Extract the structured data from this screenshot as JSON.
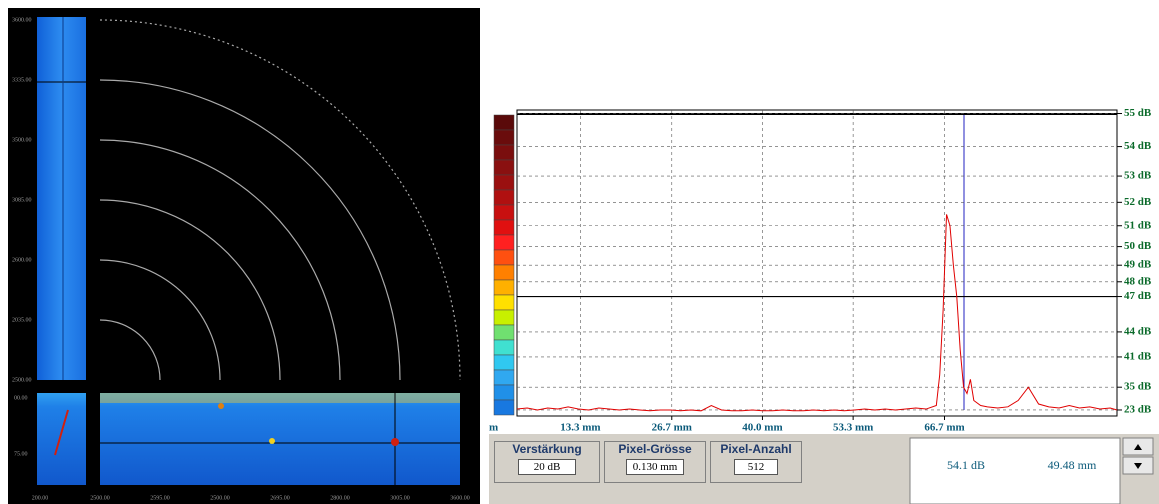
{
  "left_panel": {
    "y_labels": [
      "3600.00",
      "3335.00",
      "3500.00",
      "3085.00",
      "2600.00",
      "2035.00",
      "2500.00"
    ],
    "bscan_labels": [
      "00.00",
      "75.00"
    ],
    "x_labels": [
      "200.00",
      "2500.00",
      "2595.00",
      "2500.00",
      "2695.00",
      "2800.00",
      "3005.00",
      "3600.00"
    ]
  },
  "chart_data": {
    "type": "line",
    "yscale": "amplitude-dB",
    "color": "#e00000",
    "grid": true,
    "x_left_label": "m",
    "xlim": [
      4,
      92
    ],
    "xticks": [
      {
        "value": 13.3,
        "label": "13.3 mm"
      },
      {
        "value": 26.7,
        "label": "26.7 mm"
      },
      {
        "value": 40.0,
        "label": "40.0 mm"
      },
      {
        "value": 53.3,
        "label": "53.3 mm"
      },
      {
        "value": 66.7,
        "label": "66.7 mm"
      }
    ],
    "ylim": [
      9.5,
      55.1
    ],
    "yticks": [
      {
        "value": 55,
        "label": "55 dB"
      },
      {
        "value": 54,
        "label": "54 dB"
      },
      {
        "value": 53,
        "label": "53 dB"
      },
      {
        "value": 52,
        "label": "52 dB"
      },
      {
        "value": 51,
        "label": "51 dB"
      },
      {
        "value": 50,
        "label": "50 dB"
      },
      {
        "value": 49,
        "label": "49 dB"
      },
      {
        "value": 48,
        "label": "48 dB"
      },
      {
        "value": 47,
        "label": "47 dB"
      },
      {
        "value": 44,
        "label": "44 dB"
      },
      {
        "value": 41,
        "label": "41 dB"
      },
      {
        "value": 35,
        "label": "35 dB"
      },
      {
        "value": 23,
        "label": "23 dB"
      }
    ],
    "threshold": 47,
    "x": [
      4,
      5.5,
      7,
      8.5,
      10,
      11.5,
      13,
      14.5,
      16,
      17.5,
      19,
      20.5,
      22,
      23.5,
      25,
      26.5,
      28,
      29.5,
      31,
      32.5,
      34,
      35.5,
      37,
      38.5,
      40,
      41.5,
      43,
      44.5,
      46,
      47.5,
      49,
      50.5,
      52,
      53.5,
      55,
      56.5,
      58,
      59.5,
      61,
      62.5,
      64,
      65.5,
      66,
      66.5,
      67,
      67.5,
      68,
      68.5,
      69,
      69.5,
      70,
      70.5,
      71,
      72,
      73,
      74.5,
      76,
      77.5,
      79,
      80.5,
      82,
      83.5,
      85,
      86.5,
      88,
      89.5,
      91,
      92
    ],
    "values": [
      24,
      25,
      23,
      25,
      24,
      26,
      24,
      23,
      25,
      24,
      23,
      24,
      23,
      22,
      23,
      23,
      22,
      23,
      22,
      27,
      23,
      22,
      22,
      23,
      22,
      22,
      23,
      22,
      22,
      23,
      22,
      23,
      22,
      23,
      24,
      23,
      24,
      23,
      24,
      25,
      24,
      27,
      38,
      46,
      51.5,
      51,
      49,
      47,
      42,
      35,
      33,
      37,
      30,
      27,
      26,
      25,
      26,
      30,
      35,
      28,
      26,
      25,
      27,
      25,
      26,
      24,
      25,
      23
    ]
  },
  "controls": {
    "gain": {
      "label": "Verstärkung",
      "value": "20 dB"
    },
    "pixel_size": {
      "label": "Pixel-Grösse",
      "value": "0.130 mm"
    },
    "pixel_count": {
      "label": "Pixel-Anzahl",
      "value": "512"
    }
  },
  "readout": {
    "amplitude": "54.1 dB",
    "position": "49.48 mm"
  }
}
